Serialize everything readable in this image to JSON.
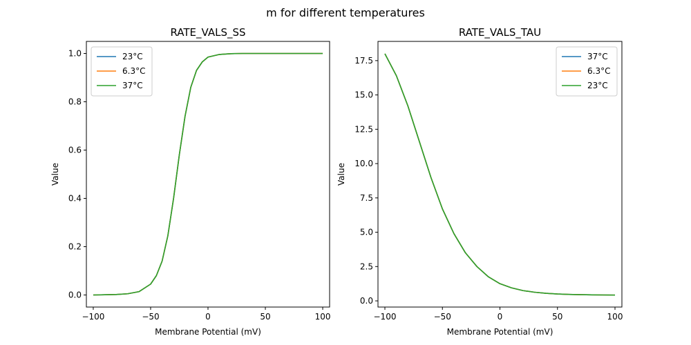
{
  "figure": {
    "suptitle": "m for different temperatures"
  },
  "chart_data": [
    {
      "type": "line",
      "title": "RATE_VALS_SS",
      "xlabel": "Membrane Potential (mV)",
      "ylabel": "Value",
      "xlim": [
        -106,
        106
      ],
      "ylim": [
        -0.05,
        1.05
      ],
      "xticks": [
        -100,
        -50,
        0,
        50,
        100
      ],
      "xtick_labels": [
        "−100",
        "−50",
        "0",
        "50",
        "100"
      ],
      "yticks": [
        0.0,
        0.2,
        0.4,
        0.6,
        0.8,
        1.0
      ],
      "ytick_labels": [
        "0.0",
        "0.2",
        "0.4",
        "0.6",
        "0.8",
        "1.0"
      ],
      "grid": false,
      "legend_position": "top-left",
      "x": [
        -100,
        -90,
        -80,
        -70,
        -60,
        -50,
        -45,
        -40,
        -35,
        -30,
        -25,
        -20,
        -15,
        -10,
        -5,
        0,
        10,
        20,
        30,
        40,
        50,
        60,
        70,
        80,
        90,
        100
      ],
      "series": [
        {
          "name": "23°C",
          "color": "#1f77b4",
          "values": [
            0.0,
            0.001,
            0.002,
            0.005,
            0.014,
            0.045,
            0.08,
            0.14,
            0.245,
            0.4,
            0.58,
            0.74,
            0.86,
            0.93,
            0.965,
            0.985,
            0.996,
            0.999,
            1.0,
            1.0,
            1.0,
            1.0,
            1.0,
            1.0,
            1.0,
            1.0
          ]
        },
        {
          "name": "6.3°C",
          "color": "#ff7f0e",
          "values": [
            0.0,
            0.001,
            0.002,
            0.005,
            0.014,
            0.045,
            0.08,
            0.14,
            0.245,
            0.4,
            0.58,
            0.74,
            0.86,
            0.93,
            0.965,
            0.985,
            0.996,
            0.999,
            1.0,
            1.0,
            1.0,
            1.0,
            1.0,
            1.0,
            1.0,
            1.0
          ]
        },
        {
          "name": "37°C",
          "color": "#2ca02c",
          "values": [
            0.0,
            0.001,
            0.002,
            0.005,
            0.014,
            0.045,
            0.08,
            0.14,
            0.245,
            0.4,
            0.58,
            0.74,
            0.86,
            0.93,
            0.965,
            0.985,
            0.996,
            0.999,
            1.0,
            1.0,
            1.0,
            1.0,
            1.0,
            1.0,
            1.0,
            1.0
          ]
        }
      ]
    },
    {
      "type": "line",
      "title": "RATE_VALS_TAU",
      "xlabel": "Membrane Potential (mV)",
      "ylabel": "Value",
      "xlim": [
        -106,
        106
      ],
      "ylim": [
        -0.45,
        18.9
      ],
      "xticks": [
        -100,
        -50,
        0,
        50,
        100
      ],
      "xtick_labels": [
        "−100",
        "−50",
        "0",
        "50",
        "100"
      ],
      "yticks": [
        0.0,
        2.5,
        5.0,
        7.5,
        10.0,
        12.5,
        15.0,
        17.5
      ],
      "ytick_labels": [
        "0.0",
        "2.5",
        "5.0",
        "7.5",
        "10.0",
        "12.5",
        "15.0",
        "17.5"
      ],
      "grid": false,
      "legend_position": "top-right",
      "x": [
        -100,
        -90,
        -80,
        -70,
        -60,
        -50,
        -40,
        -30,
        -20,
        -10,
        0,
        10,
        20,
        30,
        40,
        50,
        60,
        70,
        80,
        90,
        100
      ],
      "series": [
        {
          "name": "37°C",
          "color": "#1f77b4",
          "values": [
            18.0,
            16.4,
            14.2,
            11.6,
            9.0,
            6.7,
            4.9,
            3.5,
            2.5,
            1.75,
            1.25,
            0.95,
            0.75,
            0.63,
            0.55,
            0.5,
            0.47,
            0.45,
            0.44,
            0.43,
            0.42
          ]
        },
        {
          "name": "6.3°C",
          "color": "#ff7f0e",
          "values": [
            18.0,
            16.4,
            14.2,
            11.6,
            9.0,
            6.7,
            4.9,
            3.5,
            2.5,
            1.75,
            1.25,
            0.95,
            0.75,
            0.63,
            0.55,
            0.5,
            0.47,
            0.45,
            0.44,
            0.43,
            0.42
          ]
        },
        {
          "name": "23°C",
          "color": "#2ca02c",
          "values": [
            18.0,
            16.4,
            14.2,
            11.6,
            9.0,
            6.7,
            4.9,
            3.5,
            2.5,
            1.75,
            1.25,
            0.95,
            0.75,
            0.63,
            0.55,
            0.5,
            0.47,
            0.45,
            0.44,
            0.43,
            0.42
          ]
        }
      ]
    }
  ]
}
